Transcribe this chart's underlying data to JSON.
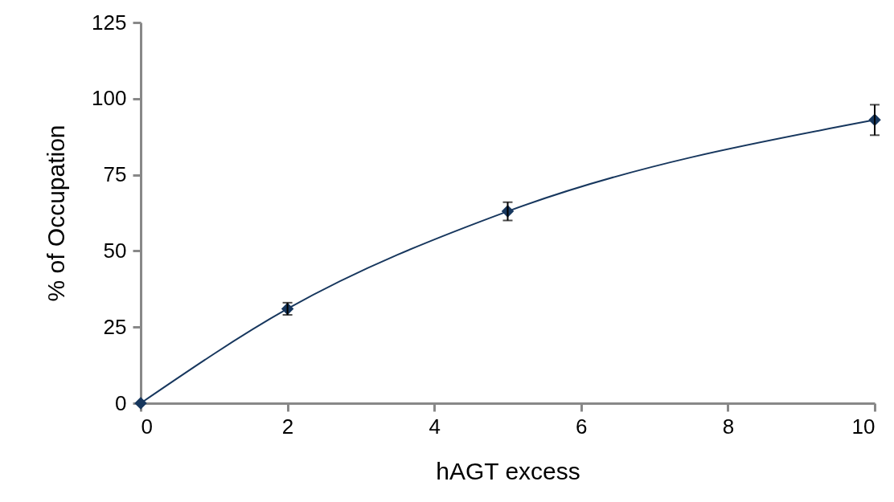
{
  "chart_data": {
    "type": "line",
    "xlabel": "hAGT excess",
    "ylabel": "% of Occupation",
    "xlim": [
      0,
      10
    ],
    "xticks": [
      0,
      2,
      4,
      6,
      8,
      10
    ],
    "ylim": [
      0,
      125
    ],
    "yticks": [
      0,
      25,
      50,
      75,
      100,
      125
    ],
    "grid": false,
    "marker": "diamond",
    "line_style": "solid",
    "series": [
      {
        "color": "#17375e",
        "x": [
          0,
          2,
          5,
          10
        ],
        "values": [
          0,
          31,
          63,
          93
        ],
        "errors": [
          null,
          2,
          3,
          5
        ]
      }
    ]
  }
}
